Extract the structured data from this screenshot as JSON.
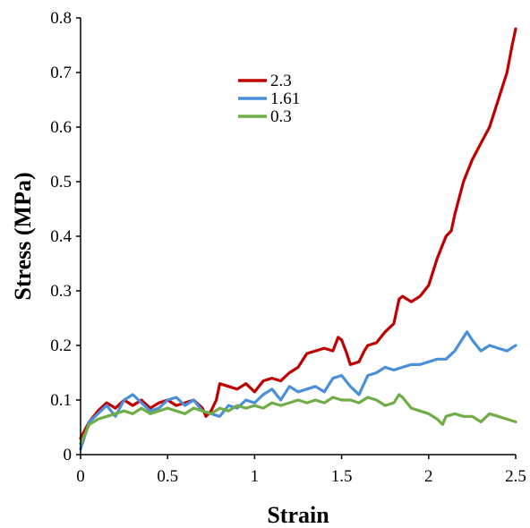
{
  "chart_data": {
    "type": "line",
    "title": "",
    "xlabel": "Strain",
    "ylabel": "Stress (MPa)",
    "xlim": [
      0,
      2.5
    ],
    "ylim": [
      0,
      0.8
    ],
    "x_ticks": [
      0,
      0.5,
      1,
      1.5,
      2,
      2.5
    ],
    "x_tick_labels": [
      "0",
      "0.5",
      "1",
      "1.5",
      "2",
      "2.5"
    ],
    "y_ticks": [
      0,
      0.1,
      0.2,
      0.3,
      0.4,
      0.5,
      0.6,
      0.7,
      0.8
    ],
    "y_tick_labels": [
      "0",
      "0.1",
      "0.2",
      "0.3",
      "0.4",
      "0.5",
      "0.6",
      "0.7",
      "0.8"
    ],
    "grid": false,
    "legend_position": "top-center",
    "series": [
      {
        "name": "2.3",
        "color": "#c00000",
        "points": [
          [
            0,
            0.03
          ],
          [
            0.05,
            0.06
          ],
          [
            0.1,
            0.08
          ],
          [
            0.15,
            0.095
          ],
          [
            0.2,
            0.085
          ],
          [
            0.25,
            0.1
          ],
          [
            0.3,
            0.09
          ],
          [
            0.35,
            0.1
          ],
          [
            0.4,
            0.085
          ],
          [
            0.45,
            0.095
          ],
          [
            0.5,
            0.1
          ],
          [
            0.55,
            0.09
          ],
          [
            0.6,
            0.095
          ],
          [
            0.65,
            0.1
          ],
          [
            0.7,
            0.085
          ],
          [
            0.72,
            0.07
          ],
          [
            0.75,
            0.08
          ],
          [
            0.78,
            0.1
          ],
          [
            0.8,
            0.13
          ],
          [
            0.85,
            0.125
          ],
          [
            0.9,
            0.12
          ],
          [
            0.95,
            0.13
          ],
          [
            1.0,
            0.115
          ],
          [
            1.05,
            0.135
          ],
          [
            1.1,
            0.14
          ],
          [
            1.15,
            0.135
          ],
          [
            1.2,
            0.15
          ],
          [
            1.25,
            0.16
          ],
          [
            1.3,
            0.185
          ],
          [
            1.35,
            0.19
          ],
          [
            1.4,
            0.195
          ],
          [
            1.45,
            0.19
          ],
          [
            1.48,
            0.215
          ],
          [
            1.5,
            0.21
          ],
          [
            1.53,
            0.185
          ],
          [
            1.55,
            0.165
          ],
          [
            1.6,
            0.17
          ],
          [
            1.63,
            0.19
          ],
          [
            1.65,
            0.2
          ],
          [
            1.7,
            0.205
          ],
          [
            1.75,
            0.225
          ],
          [
            1.8,
            0.24
          ],
          [
            1.83,
            0.285
          ],
          [
            1.85,
            0.29
          ],
          [
            1.9,
            0.28
          ],
          [
            1.95,
            0.29
          ],
          [
            2.0,
            0.31
          ],
          [
            2.05,
            0.36
          ],
          [
            2.1,
            0.4
          ],
          [
            2.13,
            0.41
          ],
          [
            2.15,
            0.44
          ],
          [
            2.2,
            0.5
          ],
          [
            2.25,
            0.54
          ],
          [
            2.3,
            0.57
          ],
          [
            2.35,
            0.6
          ],
          [
            2.4,
            0.65
          ],
          [
            2.45,
            0.7
          ],
          [
            2.48,
            0.75
          ],
          [
            2.5,
            0.78
          ]
        ]
      },
      {
        "name": "1.61",
        "color": "#4a90d9",
        "points": [
          [
            0,
            0.01
          ],
          [
            0.05,
            0.06
          ],
          [
            0.1,
            0.075
          ],
          [
            0.15,
            0.09
          ],
          [
            0.2,
            0.07
          ],
          [
            0.25,
            0.1
          ],
          [
            0.3,
            0.11
          ],
          [
            0.35,
            0.095
          ],
          [
            0.4,
            0.08
          ],
          [
            0.45,
            0.085
          ],
          [
            0.5,
            0.1
          ],
          [
            0.55,
            0.105
          ],
          [
            0.6,
            0.09
          ],
          [
            0.65,
            0.1
          ],
          [
            0.7,
            0.08
          ],
          [
            0.75,
            0.075
          ],
          [
            0.8,
            0.07
          ],
          [
            0.85,
            0.09
          ],
          [
            0.9,
            0.085
          ],
          [
            0.95,
            0.1
          ],
          [
            1.0,
            0.095
          ],
          [
            1.05,
            0.11
          ],
          [
            1.1,
            0.12
          ],
          [
            1.15,
            0.1
          ],
          [
            1.2,
            0.125
          ],
          [
            1.25,
            0.115
          ],
          [
            1.3,
            0.12
          ],
          [
            1.35,
            0.125
          ],
          [
            1.4,
            0.115
          ],
          [
            1.45,
            0.14
          ],
          [
            1.5,
            0.145
          ],
          [
            1.55,
            0.125
          ],
          [
            1.6,
            0.11
          ],
          [
            1.65,
            0.145
          ],
          [
            1.7,
            0.15
          ],
          [
            1.75,
            0.16
          ],
          [
            1.8,
            0.155
          ],
          [
            1.85,
            0.16
          ],
          [
            1.9,
            0.165
          ],
          [
            1.95,
            0.165
          ],
          [
            2.0,
            0.17
          ],
          [
            2.05,
            0.175
          ],
          [
            2.1,
            0.175
          ],
          [
            2.15,
            0.19
          ],
          [
            2.2,
            0.215
          ],
          [
            2.22,
            0.225
          ],
          [
            2.25,
            0.21
          ],
          [
            2.3,
            0.19
          ],
          [
            2.35,
            0.2
          ],
          [
            2.4,
            0.195
          ],
          [
            2.45,
            0.19
          ],
          [
            2.5,
            0.2
          ]
        ]
      },
      {
        "name": "0.3",
        "color": "#70ad47",
        "points": [
          [
            0,
            0.02
          ],
          [
            0.05,
            0.055
          ],
          [
            0.1,
            0.065
          ],
          [
            0.15,
            0.07
          ],
          [
            0.2,
            0.075
          ],
          [
            0.25,
            0.08
          ],
          [
            0.3,
            0.075
          ],
          [
            0.35,
            0.085
          ],
          [
            0.4,
            0.075
          ],
          [
            0.45,
            0.08
          ],
          [
            0.5,
            0.085
          ],
          [
            0.55,
            0.08
          ],
          [
            0.6,
            0.075
          ],
          [
            0.65,
            0.085
          ],
          [
            0.7,
            0.08
          ],
          [
            0.75,
            0.075
          ],
          [
            0.8,
            0.085
          ],
          [
            0.85,
            0.08
          ],
          [
            0.9,
            0.09
          ],
          [
            0.95,
            0.085
          ],
          [
            1.0,
            0.09
          ],
          [
            1.05,
            0.085
          ],
          [
            1.1,
            0.095
          ],
          [
            1.15,
            0.09
          ],
          [
            1.2,
            0.095
          ],
          [
            1.25,
            0.1
          ],
          [
            1.3,
            0.095
          ],
          [
            1.35,
            0.1
          ],
          [
            1.4,
            0.095
          ],
          [
            1.45,
            0.105
          ],
          [
            1.5,
            0.1
          ],
          [
            1.55,
            0.1
          ],
          [
            1.6,
            0.095
          ],
          [
            1.65,
            0.105
          ],
          [
            1.7,
            0.1
          ],
          [
            1.75,
            0.09
          ],
          [
            1.8,
            0.095
          ],
          [
            1.83,
            0.11
          ],
          [
            1.85,
            0.105
          ],
          [
            1.9,
            0.085
          ],
          [
            1.95,
            0.08
          ],
          [
            2.0,
            0.075
          ],
          [
            2.05,
            0.065
          ],
          [
            2.08,
            0.055
          ],
          [
            2.1,
            0.07
          ],
          [
            2.15,
            0.075
          ],
          [
            2.2,
            0.07
          ],
          [
            2.25,
            0.07
          ],
          [
            2.3,
            0.06
          ],
          [
            2.35,
            0.075
          ],
          [
            2.4,
            0.07
          ],
          [
            2.45,
            0.065
          ],
          [
            2.5,
            0.06
          ]
        ]
      }
    ]
  }
}
